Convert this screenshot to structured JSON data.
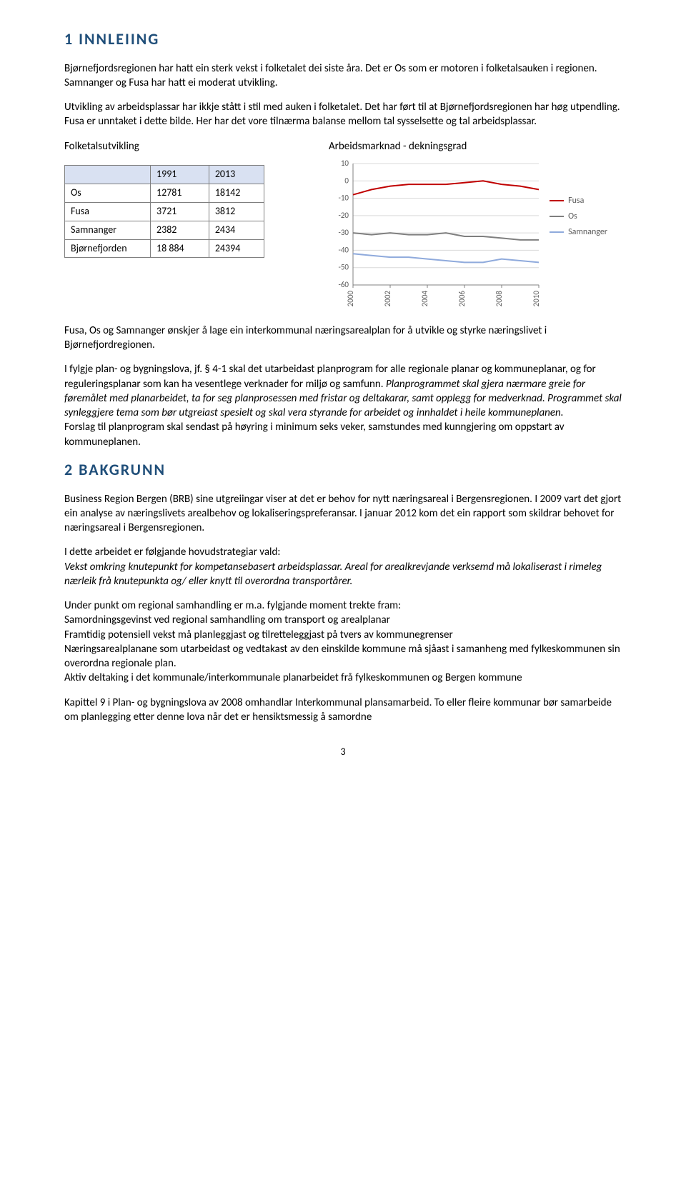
{
  "section1": {
    "heading": "1  INNLEIING",
    "p1": "Bjørnefjordsregionen har hatt ein sterk vekst i folketalet dei siste åra. Det er Os som er motoren i folketalsauken i regionen.  Samnanger og Fusa har hatt ei moderat utvikling.",
    "p2": "Utvikling av arbeidsplassar har ikkje stått i stil med auken i folketalet. Det har ført til at Bjørnefjordsregionen har høg utpendling. Fusa er unntaket i dette bilde. Her har det vore tilnærma balanse mellom tal sysselsette og tal arbeidsplassar.",
    "left_heading": "Folketalsutvikling",
    "right_heading": "Arbeidsmarknad - dekningsgrad",
    "table": {
      "columns": [
        "",
        "1991",
        "2013"
      ],
      "rows": [
        [
          "Os",
          "12781",
          "18142"
        ],
        [
          "Fusa",
          "3721",
          "3812"
        ],
        [
          "Samnanger",
          "2382",
          "2434"
        ],
        [
          "Bjørnefjorden",
          "18 884",
          "24394"
        ]
      ]
    },
    "chart": {
      "type": "line",
      "ylim": [
        -60,
        10
      ],
      "ytick_step": 10,
      "yticks": [
        10,
        0,
        -10,
        -20,
        -30,
        -40,
        -50,
        -60
      ],
      "xticks": [
        "2000",
        "2002",
        "2004",
        "2006",
        "2008",
        "2010"
      ],
      "x_count": 11,
      "background_color": "#ffffff",
      "grid_color": "#d9d9d9",
      "axis_color": "#808080",
      "text_color": "#595959",
      "font_size": 11,
      "line_width": 2,
      "series": [
        {
          "name": "Fusa",
          "color": "#c00000",
          "values": [
            -8,
            -5,
            -3,
            -2,
            -2,
            -2,
            -1,
            0,
            -2,
            -3,
            -5
          ]
        },
        {
          "name": "Os",
          "color": "#7f7f7f",
          "values": [
            -30,
            -31,
            -30,
            -31,
            -31,
            -30,
            -32,
            -32,
            -33,
            -34,
            -34
          ]
        },
        {
          "name": "Samnanger",
          "color": "#8faadc",
          "values": [
            -42,
            -43,
            -44,
            -44,
            -45,
            -46,
            -47,
            -47,
            -45,
            -46,
            -47
          ]
        }
      ]
    },
    "p3": "Fusa, Os og Samnanger ønskjer å lage ein interkommunal næringsarealplan for å utvikle og styrke næringslivet i Bjørnefjordregionen.",
    "p4a": "I fylgje plan- og bygningslova, jf. § 4-1 skal det utarbeidast planprogram for alle regionale planar og kommuneplanar, og for reguleringsplanar som kan ha vesentlege verknader for miljø og samfunn. ",
    "p4b_italic": "Planprogrammet skal gjera nærmare greie for føremålet med planarbeidet, ta for seg planprosessen med fristar og deltakarar, samt opplegg for medverknad. Programmet skal synleggjere tema som bør utgreiast spesielt og skal vera styrande for arbeidet og innhaldet i heile kommuneplanen.",
    "p4c": "Forslag til planprogram skal sendast  på høyring i minimum seks veker, samstundes med kunngjering om oppstart av kommuneplanen."
  },
  "section2": {
    "heading": "2  BAKGRUNN",
    "p1": "Business Region Bergen (BRB) sine utgreiingar viser at det er behov for nytt næringsareal i Bergensregionen. I 2009 vart det gjort ein analyse av næringslivets arealbehov og lokaliseringspreferansar. I januar 2012 kom det ein rapport som skildrar behovet for næringsareal i Bergensregionen.",
    "p2a": "I dette arbeidet er følgjande hovudstrategiar vald:",
    "p2b_italic": "Vekst omkring knutepunkt for kompetansebasert arbeidsplassar. Areal for arealkrevjande verksemd må lokaliserast i rimeleg nærleik frå knutepunkta og/ eller knytt til overordna transportårer.",
    "p3a": "Under punkt om regional samhandling er m.a. fylgjande moment trekte fram:",
    "p3_lines": [
      "Samordningsgevinst ved regional samhandling om transport og arealplanar",
      "Framtidig potensiell vekst må planleggjast og tilretteleggjast på tvers av kommunegrenser",
      "Næringsarealplanane som utarbeidast og vedtakast av den einskilde kommune må sjåast i samanheng med fylkeskommunen sin overordna regionale plan.",
      "Aktiv deltaking i det kommunale/interkommunale planarbeidet frå fylkeskommunen og Bergen kommune"
    ],
    "p4": "Kapittel 9 i Plan- og bygningslova av 2008 omhandlar Interkommunal plansamarbeid.  To eller fleire kommunar bør samarbeide om planlegging etter denne lova når det er hensiktsmessig å samordne"
  },
  "page_number": "3"
}
